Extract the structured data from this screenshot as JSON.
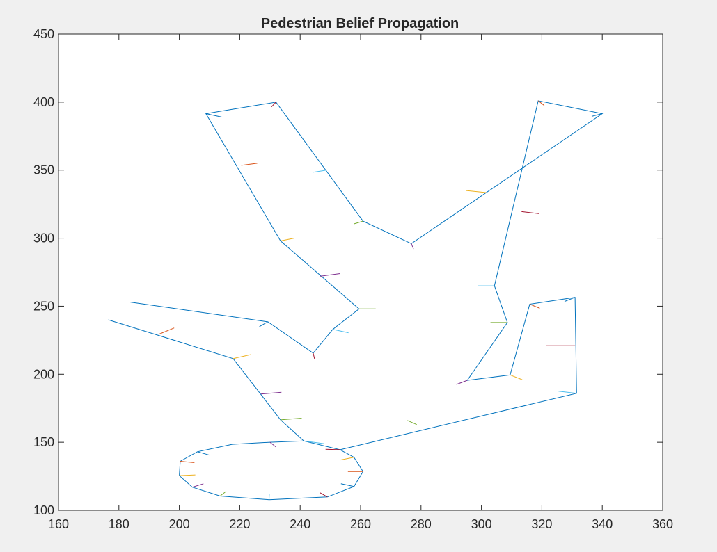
{
  "window": {
    "background": "#f0f0f0"
  },
  "chart_data": {
    "type": "line",
    "title": "Pedestrian Belief Propagation",
    "xlabel": "",
    "ylabel": "",
    "xlim": [
      160,
      360
    ],
    "ylim": [
      100,
      450
    ],
    "xticks": [
      160,
      180,
      200,
      220,
      240,
      260,
      280,
      300,
      320,
      340,
      360
    ],
    "yticks": [
      100,
      150,
      200,
      250,
      300,
      350,
      400,
      450
    ],
    "grid": false,
    "legend": "none",
    "line_color": "#0072bd",
    "series": [
      {
        "points": [
          [
            176.5,
            240
          ],
          [
            217.8,
            211.5
          ],
          [
            233.5,
            166.5
          ],
          [
            241.2,
            151
          ],
          [
            253.2,
            144.5
          ],
          [
            331.5,
            186
          ],
          [
            331,
            256.5
          ],
          [
            316,
            251.5
          ],
          [
            309.5,
            199.5
          ],
          [
            295.3,
            195.5
          ],
          [
            308.6,
            238
          ],
          [
            304.3,
            265
          ],
          [
            318.8,
            401
          ],
          [
            340,
            391.5
          ],
          [
            276.8,
            296
          ],
          [
            260.8,
            312.5
          ],
          [
            232,
            400
          ],
          [
            208.8,
            391.5
          ],
          [
            233.5,
            298
          ],
          [
            259.5,
            248
          ],
          [
            250.8,
            233
          ],
          [
            244.3,
            215.5
          ],
          [
            229.3,
            238.5
          ],
          [
            183.8,
            253
          ]
        ]
      },
      {
        "points": [
          [
            241.2,
            151
          ],
          [
            230,
            150
          ],
          [
            217.5,
            148.5
          ],
          [
            206,
            143
          ],
          [
            200.3,
            136
          ],
          [
            200,
            125.5
          ],
          [
            204.3,
            117
          ],
          [
            213.5,
            110.5
          ],
          [
            229.7,
            107.8
          ],
          [
            249,
            109.8
          ],
          [
            257.8,
            117.5
          ],
          [
            260.8,
            128.5
          ],
          [
            257.8,
            139
          ],
          [
            253.2,
            144.5
          ]
        ]
      }
    ],
    "ticks": [
      {
        "x1": 193.3,
        "y1": 229.5,
        "x2": 198.3,
        "y2": 234.0,
        "color": "#d95319"
      },
      {
        "x1": 217.8,
        "y1": 211.5,
        "x2": 223.8,
        "y2": 214.5,
        "color": "#edb120"
      },
      {
        "x1": 227.0,
        "y1": 185.5,
        "x2": 233.8,
        "y2": 186.7,
        "color": "#7e2f8e"
      },
      {
        "x1": 233.5,
        "y1": 166.5,
        "x2": 240.5,
        "y2": 167.7,
        "color": "#77ac30"
      },
      {
        "x1": 241.2,
        "y1": 151.0,
        "x2": 247.8,
        "y2": 149.0,
        "color": "#4dbeee"
      },
      {
        "x1": 253.2,
        "y1": 144.5,
        "x2": 248.4,
        "y2": 144.8,
        "color": "#a2142f"
      },
      {
        "x1": 278.6,
        "y1": 163.0,
        "x2": 275.5,
        "y2": 166.0,
        "color": "#77ac30"
      },
      {
        "x1": 331.5,
        "y1": 186.0,
        "x2": 325.5,
        "y2": 187.5,
        "color": "#4dbeee"
      },
      {
        "x1": 331.0,
        "y1": 221.0,
        "x2": 321.5,
        "y2": 221.0,
        "color": "#a2142f"
      },
      {
        "x1": 331.0,
        "y1": 256.5,
        "x2": 327.5,
        "y2": 253.5,
        "color": "#0072bd"
      },
      {
        "x1": 316.0,
        "y1": 251.5,
        "x2": 319.3,
        "y2": 248.5,
        "color": "#d95319"
      },
      {
        "x1": 309.5,
        "y1": 199.5,
        "x2": 313.5,
        "y2": 196.0,
        "color": "#edb120"
      },
      {
        "x1": 295.3,
        "y1": 195.5,
        "x2": 291.7,
        "y2": 192.5,
        "color": "#7e2f8e"
      },
      {
        "x1": 308.6,
        "y1": 238.0,
        "x2": 303.0,
        "y2": 238.0,
        "color": "#77ac30"
      },
      {
        "x1": 304.3,
        "y1": 265.0,
        "x2": 298.7,
        "y2": 265.0,
        "color": "#4dbeee"
      },
      {
        "x1": 319.0,
        "y1": 318.0,
        "x2": 313.3,
        "y2": 319.5,
        "color": "#a2142f"
      },
      {
        "x1": 295.0,
        "y1": 335.0,
        "x2": 301.5,
        "y2": 333.5,
        "color": "#edb120"
      },
      {
        "x1": 318.8,
        "y1": 401.0,
        "x2": 320.8,
        "y2": 397.5,
        "color": "#d95319"
      },
      {
        "x1": 340.0,
        "y1": 391.5,
        "x2": 336.5,
        "y2": 389.5,
        "color": "#0072bd"
      },
      {
        "x1": 276.8,
        "y1": 296.0,
        "x2": 277.5,
        "y2": 292.0,
        "color": "#7e2f8e"
      },
      {
        "x1": 260.8,
        "y1": 312.5,
        "x2": 257.8,
        "y2": 310.5,
        "color": "#77ac30"
      },
      {
        "x1": 248.8,
        "y1": 350.0,
        "x2": 244.3,
        "y2": 348.5,
        "color": "#4dbeee"
      },
      {
        "x1": 232.0,
        "y1": 400.0,
        "x2": 230.5,
        "y2": 396.5,
        "color": "#a2142f"
      },
      {
        "x1": 208.8,
        "y1": 391.5,
        "x2": 214.0,
        "y2": 389.0,
        "color": "#0072bd"
      },
      {
        "x1": 220.5,
        "y1": 353.5,
        "x2": 225.8,
        "y2": 355.0,
        "color": "#d95319"
      },
      {
        "x1": 233.5,
        "y1": 298.0,
        "x2": 238.0,
        "y2": 300.0,
        "color": "#edb120"
      },
      {
        "x1": 246.5,
        "y1": 272.0,
        "x2": 253.2,
        "y2": 274.0,
        "color": "#7e2f8e"
      },
      {
        "x1": 259.5,
        "y1": 248.0,
        "x2": 265.0,
        "y2": 248.0,
        "color": "#77ac30"
      },
      {
        "x1": 250.8,
        "y1": 233.0,
        "x2": 256.0,
        "y2": 230.5,
        "color": "#4dbeee"
      },
      {
        "x1": 244.3,
        "y1": 215.5,
        "x2": 244.8,
        "y2": 211.0,
        "color": "#a2142f"
      },
      {
        "x1": 229.3,
        "y1": 238.5,
        "x2": 226.5,
        "y2": 235.0,
        "color": "#0072bd"
      },
      {
        "x1": 230.0,
        "y1": 150.0,
        "x2": 232.0,
        "y2": 146.5,
        "color": "#7e2f8e"
      },
      {
        "x1": 206.0,
        "y1": 143.0,
        "x2": 210.0,
        "y2": 140.5,
        "color": "#0072bd"
      },
      {
        "x1": 200.3,
        "y1": 136.0,
        "x2": 205.0,
        "y2": 135.0,
        "color": "#d95319"
      },
      {
        "x1": 200.0,
        "y1": 125.5,
        "x2": 205.3,
        "y2": 126.0,
        "color": "#edb120"
      },
      {
        "x1": 204.3,
        "y1": 117.0,
        "x2": 208.0,
        "y2": 119.5,
        "color": "#7e2f8e"
      },
      {
        "x1": 213.5,
        "y1": 110.5,
        "x2": 215.5,
        "y2": 114.0,
        "color": "#77ac30"
      },
      {
        "x1": 229.7,
        "y1": 107.8,
        "x2": 229.8,
        "y2": 112.0,
        "color": "#4dbeee"
      },
      {
        "x1": 249.0,
        "y1": 109.8,
        "x2": 246.5,
        "y2": 113.0,
        "color": "#a2142f"
      },
      {
        "x1": 257.8,
        "y1": 117.5,
        "x2": 253.5,
        "y2": 119.5,
        "color": "#0072bd"
      },
      {
        "x1": 260.8,
        "y1": 128.5,
        "x2": 255.8,
        "y2": 128.5,
        "color": "#d95319"
      },
      {
        "x1": 257.8,
        "y1": 139.0,
        "x2": 253.3,
        "y2": 137.0,
        "color": "#edb120"
      }
    ]
  }
}
